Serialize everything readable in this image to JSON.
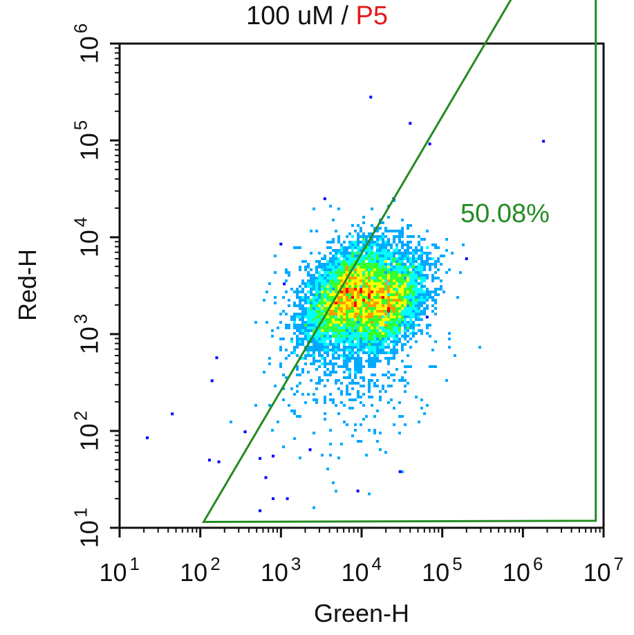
{
  "title": {
    "sample": "100 uM",
    "separator": " / ",
    "gate": "P5",
    "gate_color": "#e41a1c"
  },
  "chart_data": {
    "type": "scatter",
    "subtype": "flow-cytometry density dot plot",
    "xlabel": "Green-H",
    "ylabel": "Red-H",
    "x_scale": "log",
    "y_scale": "log",
    "xlim": [
      10,
      10000000
    ],
    "ylim": [
      10,
      1000000
    ],
    "x_ticks": [
      {
        "base": "10",
        "exp": "1"
      },
      {
        "base": "10",
        "exp": "2"
      },
      {
        "base": "10",
        "exp": "3"
      },
      {
        "base": "10",
        "exp": "4"
      },
      {
        "base": "10",
        "exp": "5"
      },
      {
        "base": "10",
        "exp": "6"
      },
      {
        "base": "10",
        "exp": "7"
      }
    ],
    "y_ticks": [
      {
        "base": "10",
        "exp": "1"
      },
      {
        "base": "10",
        "exp": "2"
      },
      {
        "base": "10",
        "exp": "3"
      },
      {
        "base": "10",
        "exp": "4"
      },
      {
        "base": "10",
        "exp": "5"
      },
      {
        "base": "10",
        "exp": "6"
      }
    ],
    "grid": false,
    "colormap": [
      "#0000ff",
      "#00aaff",
      "#00ffff",
      "#33ff33",
      "#ffff00",
      "#ff9900",
      "#ff0000"
    ],
    "populations": [
      {
        "center_x": 6500,
        "center_y": 2600,
        "relative_density": 1.0
      },
      {
        "center_x": 20000,
        "center_y": 2000,
        "relative_density": 0.75
      }
    ],
    "gate": {
      "color": "#238b22",
      "label": "50.08%",
      "vertices": [
        [
          110,
          11.5
        ],
        [
          1500000,
          8200000
        ],
        [
          8000000,
          8200000
        ],
        [
          8000000,
          11.8
        ]
      ]
    },
    "outlier_points": [
      [
        13000,
        280000
      ],
      [
        40000,
        150000
      ],
      [
        1800000,
        98000
      ],
      [
        70000,
        92000
      ],
      [
        25000,
        25000
      ],
      [
        3500,
        25000
      ],
      [
        200000,
        6000
      ],
      [
        1000,
        8500
      ],
      [
        1100,
        3300
      ],
      [
        160,
        570
      ],
      [
        140,
        330
      ],
      [
        45,
        150
      ],
      [
        22,
        85
      ],
      [
        360,
        98
      ],
      [
        130,
        50
      ],
      [
        170,
        48
      ],
      [
        550,
        52
      ],
      [
        650,
        33
      ],
      [
        800,
        20
      ],
      [
        1200,
        20
      ],
      [
        9000,
        24
      ],
      [
        30000,
        38
      ],
      [
        2300,
        64
      ],
      [
        800,
        55
      ],
      [
        550,
        15
      ],
      [
        65000,
        1500
      ]
    ]
  }
}
